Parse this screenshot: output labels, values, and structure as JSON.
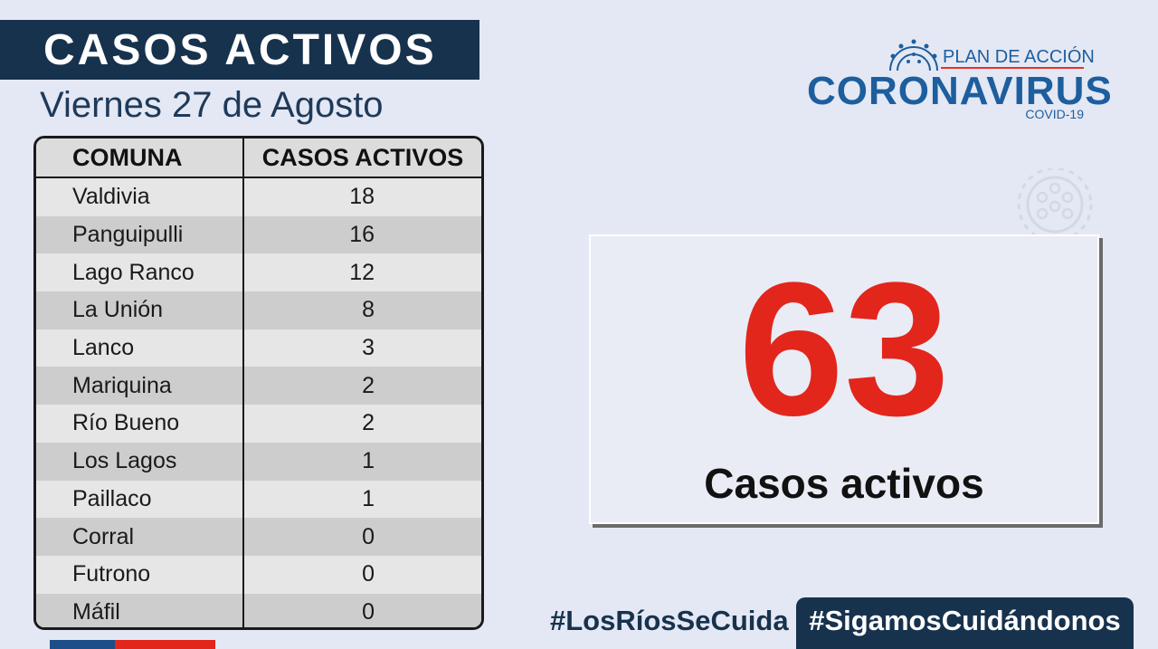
{
  "header": {
    "title": "CASOS ACTIVOS",
    "date": "Viernes 27 de Agosto"
  },
  "logo": {
    "plan": "PLAN DE ACCIÓN",
    "main": "CORONAVIRUS",
    "sub": "COVID-19",
    "icon": "virus-icon"
  },
  "table": {
    "headers": [
      "COMUNA",
      "CASOS ACTIVOS"
    ],
    "rows": [
      {
        "comuna": "Valdivia",
        "casos": "18"
      },
      {
        "comuna": "Panguipulli",
        "casos": "16"
      },
      {
        "comuna": "Lago Ranco",
        "casos": "12"
      },
      {
        "comuna": "La Unión",
        "casos": "8"
      },
      {
        "comuna": "Lanco",
        "casos": "3"
      },
      {
        "comuna": "Mariquina",
        "casos": "2"
      },
      {
        "comuna": "Río Bueno",
        "casos": "2"
      },
      {
        "comuna": "Los Lagos",
        "casos": "1"
      },
      {
        "comuna": "Paillaco",
        "casos": "1"
      },
      {
        "comuna": "Corral",
        "casos": "0"
      },
      {
        "comuna": "Futrono",
        "casos": "0"
      },
      {
        "comuna": "Máfil",
        "casos": "0"
      }
    ]
  },
  "summary": {
    "total": "63",
    "label": "Casos activos"
  },
  "footer": {
    "hashtag_left": "#LosRíosSeCuida",
    "hashtag_right": "#SigamosCuidándonos"
  },
  "colors": {
    "navy": "#17324d",
    "accent_blue": "#1d5e9e",
    "red": "#e2261c",
    "background": "#e4e8f4"
  }
}
